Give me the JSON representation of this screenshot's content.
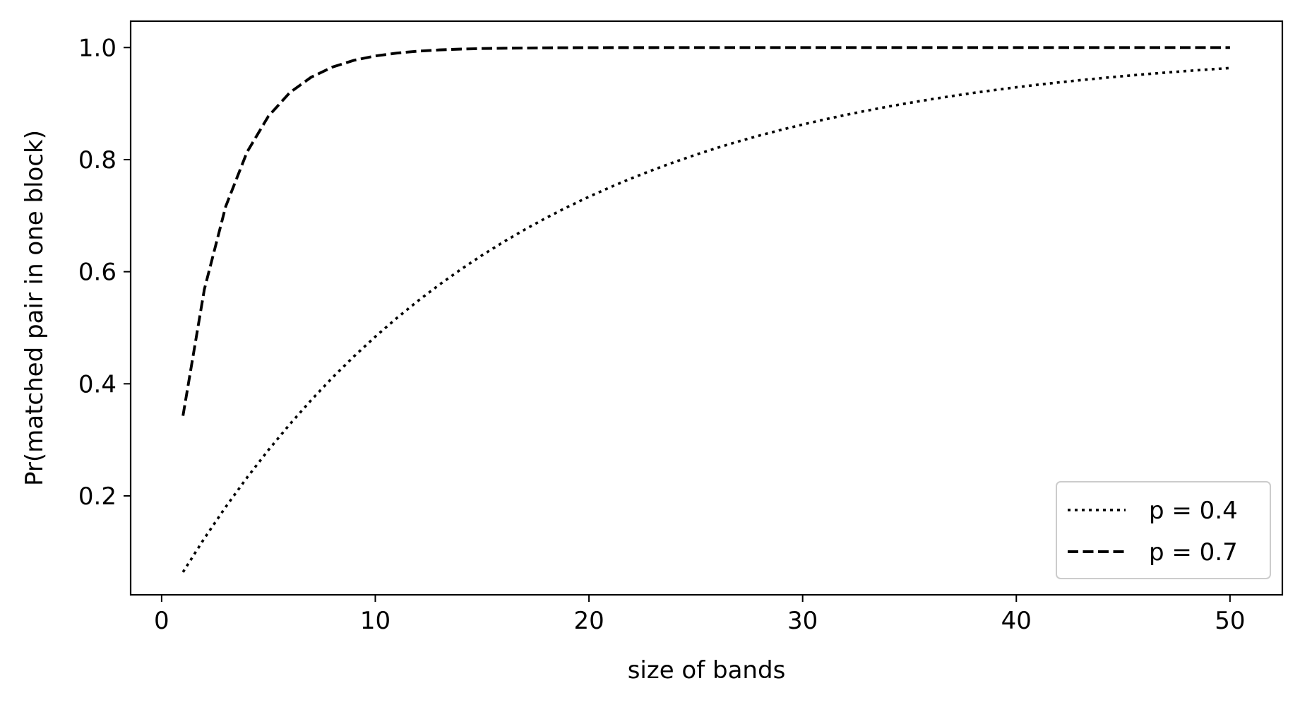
{
  "chart_data": {
    "type": "line",
    "xlabel": "size of bands",
    "ylabel": "Pr(matched pair in one block)",
    "xlim": [
      -1.45,
      52.45
    ],
    "ylim": [
      0.0235,
      1.047
    ],
    "xticks": [
      0,
      10,
      20,
      30,
      40,
      50
    ],
    "yticks": [
      0.2,
      0.4,
      0.6,
      0.8,
      1.0
    ],
    "xtick_labels": [
      "0",
      "10",
      "20",
      "30",
      "40",
      "50"
    ],
    "ytick_labels": [
      "0.2",
      "0.4",
      "0.6",
      "0.8",
      "1.0"
    ],
    "grid": false,
    "legend_position": "lower-right",
    "x": [
      1,
      2,
      3,
      4,
      5,
      6,
      7,
      8,
      9,
      10,
      11,
      12,
      13,
      14,
      15,
      16,
      17,
      18,
      19,
      20,
      21,
      22,
      23,
      24,
      25,
      26,
      27,
      28,
      29,
      30,
      31,
      32,
      33,
      34,
      35,
      36,
      37,
      38,
      39,
      40,
      41,
      42,
      43,
      44,
      45,
      46,
      47,
      48,
      49,
      50
    ],
    "series": [
      {
        "name": "p = 0.4",
        "line_style": "dotted",
        "color": "#000000",
        "values": [
          0.064,
          0.1242,
          0.1803,
          0.2328,
          0.2819,
          0.3278,
          0.3709,
          0.4112,
          0.4488,
          0.4841,
          0.5171,
          0.548,
          0.5769,
          0.604,
          0.6294,
          0.6531,
          0.6753,
          0.6961,
          0.7156,
          0.7338,
          0.7508,
          0.7668,
          0.7817,
          0.7957,
          0.8088,
          0.821,
          0.8325,
          0.8432,
          0.8532,
          0.8626,
          0.8714,
          0.8797,
          0.8874,
          0.8946,
          0.9013,
          0.9076,
          0.9135,
          0.9191,
          0.9242,
          0.9291,
          0.9336,
          0.9378,
          0.9418,
          0.9455,
          0.949,
          0.9523,
          0.9553,
          0.9582,
          0.9609,
          0.9634
        ]
      },
      {
        "name": "p = 0.7",
        "line_style": "dashed",
        "color": "#000000",
        "values": [
          0.343,
          0.5685,
          0.7165,
          0.8137,
          0.8776,
          0.9196,
          0.9471,
          0.9652,
          0.9772,
          0.985,
          0.9901,
          0.9935,
          0.9958,
          0.9972,
          0.9982,
          0.9988,
          0.9992,
          0.9995,
          0.9997,
          0.9998,
          0.9999,
          0.9999,
          0.9999,
          1.0,
          1.0,
          1.0,
          1.0,
          1.0,
          1.0,
          1.0,
          1.0,
          1.0,
          1.0,
          1.0,
          1.0,
          1.0,
          1.0,
          1.0,
          1.0,
          1.0,
          1.0,
          1.0,
          1.0,
          1.0,
          1.0,
          1.0,
          1.0,
          1.0,
          1.0,
          1.0
        ]
      }
    ]
  }
}
